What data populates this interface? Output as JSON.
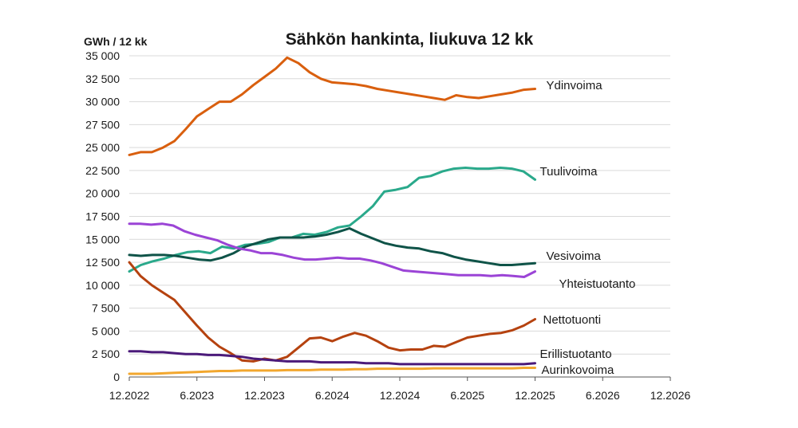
{
  "chart_data": {
    "type": "line",
    "title": "Sähkön hankinta, liukuva 12 kk",
    "ylabel": "GWh / 12 kk",
    "xlabel": "",
    "ylim": [
      0,
      35000
    ],
    "y_ticks": [
      0,
      2500,
      5000,
      7500,
      10000,
      12500,
      15000,
      17500,
      20000,
      22500,
      25000,
      27500,
      30000,
      32500,
      35000
    ],
    "y_tick_labels": [
      "0",
      "2 500",
      "5 000",
      "7 500",
      "10 000",
      "12 500",
      "15 000",
      "17 500",
      "20 000",
      "22 500",
      "25 000",
      "27 500",
      "30 000",
      "32 500",
      "35 000"
    ],
    "x_range": [
      0,
      48
    ],
    "x_ticks": [
      0,
      6,
      12,
      18,
      24,
      30,
      36,
      42,
      48
    ],
    "x_tick_labels": [
      "12.2022",
      "6.2023",
      "12.2023",
      "6.2024",
      "12.2024",
      "6.2025",
      "12.2025",
      "6.2026",
      "12.2026"
    ],
    "grid": true,
    "legend": "inline-right",
    "series": [
      {
        "name": "Ydinvoima",
        "color": "#d95f0e",
        "values": [
          24200,
          24500,
          24500,
          25000,
          25700,
          27000,
          28400,
          29200,
          30000,
          30000,
          30800,
          31800,
          32700,
          33600,
          34800,
          34200,
          33200,
          32500,
          32100,
          32000,
          31900,
          31700,
          31400,
          31200,
          31000,
          30800,
          30600,
          30400,
          30200,
          30700,
          30500,
          30400,
          30600,
          30800,
          31000,
          31300,
          31400
        ]
      },
      {
        "name": "Tuulivoima",
        "color": "#2aa98b",
        "values": [
          11500,
          12200,
          12600,
          12900,
          13300,
          13600,
          13700,
          13500,
          14200,
          14000,
          14400,
          14500,
          14700,
          15200,
          15200,
          15600,
          15500,
          15800,
          16300,
          16500,
          17500,
          18600,
          20200,
          20400,
          20700,
          21700,
          21900,
          22400,
          22700,
          22800,
          22700,
          22700,
          22800,
          22700,
          22400,
          21500
        ]
      },
      {
        "name": "Vesivoima",
        "color": "#0f5348",
        "values": [
          13300,
          13200,
          13300,
          13300,
          13200,
          13000,
          12800,
          12700,
          13000,
          13500,
          14200,
          14600,
          15000,
          15200,
          15200,
          15200,
          15300,
          15500,
          15800,
          16200,
          15600,
          15100,
          14600,
          14300,
          14100,
          14000,
          13700,
          13500,
          13100,
          12800,
          12600,
          12400,
          12200,
          12200,
          12300,
          12400
        ]
      },
      {
        "name": "Yhteistuotanto",
        "color": "#9b44d6",
        "values": [
          16700,
          16700,
          16600,
          16700,
          16500,
          15900,
          15500,
          15200,
          14900,
          14400,
          14000,
          13800,
          13500,
          13500,
          13300,
          13000,
          12800,
          12800,
          12900,
          13000,
          12900,
          12900,
          12700,
          12400,
          12000,
          11600,
          11500,
          11400,
          11300,
          11200,
          11100,
          11100,
          11100,
          11000,
          11100,
          11000,
          10900,
          11500
        ]
      },
      {
        "name": "Nettotuonti",
        "color": "#b5420f",
        "values": [
          12500,
          11000,
          10000,
          9200,
          8400,
          7000,
          5600,
          4300,
          3300,
          2600,
          1800,
          1700,
          2000,
          1800,
          2200,
          3200,
          4200,
          4300,
          3900,
          4400,
          4800,
          4500,
          3900,
          3200,
          2900,
          3000,
          3000,
          3400,
          3300,
          3800,
          4300,
          4500,
          4700,
          4800,
          5100,
          5600,
          6300
        ]
      },
      {
        "name": "Erillistuotanto",
        "color": "#4b1a7a",
        "values": [
          2800,
          2800,
          2700,
          2700,
          2600,
          2500,
          2500,
          2400,
          2400,
          2300,
          2200,
          2000,
          1900,
          1800,
          1700,
          1700,
          1700,
          1600,
          1600,
          1600,
          1600,
          1500,
          1500,
          1500,
          1400,
          1400,
          1400,
          1400,
          1400,
          1400,
          1400,
          1400,
          1400,
          1400,
          1400,
          1400,
          1500
        ]
      },
      {
        "name": "Aurinkovoima",
        "color": "#f2a72e",
        "values": [
          350,
          350,
          350,
          400,
          450,
          500,
          550,
          600,
          650,
          650,
          700,
          700,
          700,
          700,
          750,
          750,
          750,
          800,
          800,
          800,
          850,
          850,
          900,
          900,
          900,
          900,
          900,
          950,
          950,
          950,
          950,
          950,
          950,
          950,
          950,
          1000,
          1000
        ]
      }
    ]
  }
}
